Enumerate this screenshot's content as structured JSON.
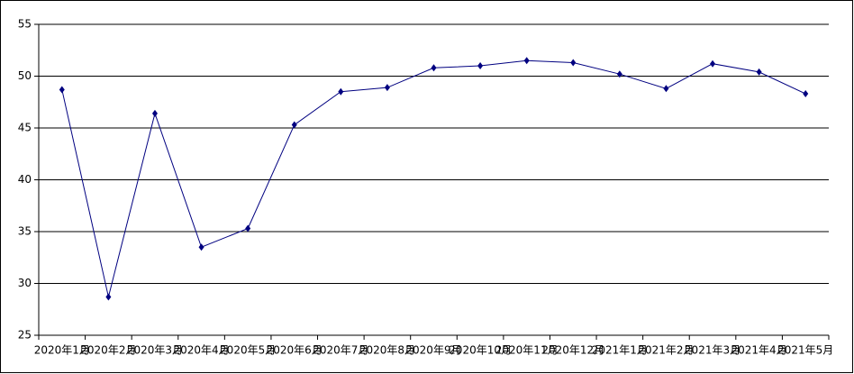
{
  "chart_data": {
    "type": "line",
    "categories": [
      "2020年1月",
      "2020年2月",
      "2020年3月",
      "2020年4月",
      "2020年5月",
      "2020年6月",
      "2020年7月",
      "2020年8月",
      "2020年9月",
      "2020年10月",
      "2020年11月",
      "2020年12月",
      "2021年1月",
      "2021年2月",
      "2021年3月",
      "2021年4月",
      "2021年5月"
    ],
    "values": [
      48.7,
      28.7,
      46.4,
      33.5,
      35.3,
      45.3,
      48.5,
      48.9,
      50.8,
      51.0,
      51.5,
      51.3,
      50.2,
      48.8,
      51.2,
      50.4,
      48.3
    ],
    "color": "#000080",
    "ylim": [
      25,
      55
    ],
    "yticks": [
      25,
      30,
      35,
      40,
      45,
      50,
      55
    ],
    "grid": true
  }
}
